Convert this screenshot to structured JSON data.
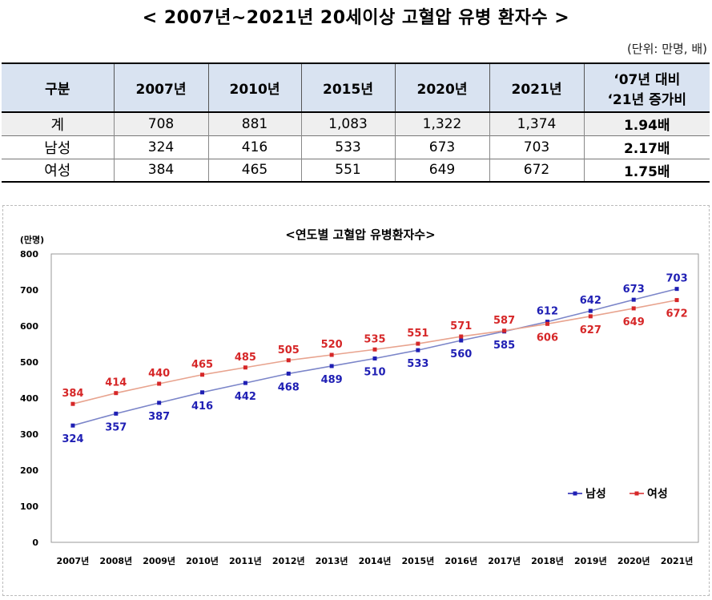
{
  "header": {
    "title": "< 2007년~2021년 20세이상 고혈압 유병 환자수 >",
    "unit": "(단위: 만명, 배)"
  },
  "table": {
    "columns": [
      "구분",
      "2007년",
      "2010년",
      "2015년",
      "2020년",
      "2021년"
    ],
    "ratio_header_line1": "‘07년 대비",
    "ratio_header_line2": "‘21년 증가비",
    "rows": [
      {
        "label": "계",
        "values": [
          "708",
          "881",
          "1,083",
          "1,322",
          "1,374"
        ],
        "ratio": "1.94배"
      },
      {
        "label": "남성",
        "values": [
          "324",
          "416",
          "533",
          "673",
          "703"
        ],
        "ratio": "2.17배"
      },
      {
        "label": "여성",
        "values": [
          "384",
          "465",
          "551",
          "649",
          "672"
        ],
        "ratio": "1.75배"
      }
    ]
  },
  "chart_data": {
    "type": "line",
    "title": "<연도별 고혈압 유병환자수>",
    "ylabel": "(만명)",
    "xlabel": "",
    "categories": [
      "2007년",
      "2008년",
      "2009년",
      "2010년",
      "2011년",
      "2012년",
      "2013년",
      "2014년",
      "2015년",
      "2016년",
      "2017년",
      "2018년",
      "2019년",
      "2020년",
      "2021년"
    ],
    "ylim": [
      0,
      800
    ],
    "yticks": [
      0,
      100,
      200,
      300,
      400,
      500,
      600,
      700,
      800
    ],
    "grid": false,
    "legend_position": "bottom-right",
    "series": [
      {
        "name": "남성",
        "color": "#1f1fb4",
        "values": [
          324,
          357,
          387,
          416,
          442,
          468,
          489,
          510,
          533,
          560,
          585,
          612,
          642,
          673,
          703
        ],
        "label_side": [
          "below",
          "below",
          "below",
          "below",
          "below",
          "below",
          "below",
          "below",
          "below",
          "below",
          "below",
          "above",
          "above",
          "above",
          "above"
        ]
      },
      {
        "name": "여성",
        "color": "#d62728",
        "values": [
          384,
          414,
          440,
          465,
          485,
          505,
          520,
          535,
          551,
          571,
          587,
          606,
          627,
          649,
          672
        ],
        "label_side": [
          "above",
          "above",
          "above",
          "above",
          "above",
          "above",
          "above",
          "above",
          "above",
          "above",
          "above",
          "below",
          "below",
          "below",
          "below"
        ]
      }
    ]
  }
}
